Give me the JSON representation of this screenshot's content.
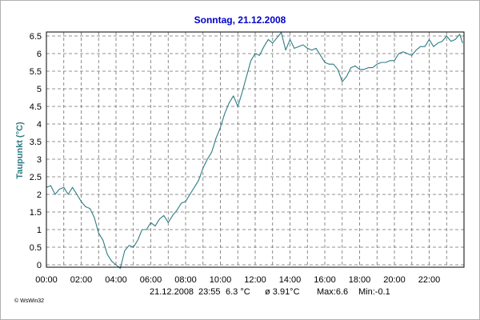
{
  "chart_data": {
    "type": "line",
    "title": "Sonntag, 21.12.2008",
    "ylabel": "Taupunkt (°C)",
    "xlabel": "",
    "xlim": [
      0,
      24
    ],
    "ylim": [
      0,
      6.5
    ],
    "x_ticks": [
      "00:00",
      "02:00",
      "04:00",
      "06:00",
      "08:00",
      "10:00",
      "12:00",
      "14:00",
      "16:00",
      "18:00",
      "20:00",
      "22:00"
    ],
    "y_ticks": [
      "0",
      "0.5",
      "1",
      "1.5",
      "2",
      "2.5",
      "3",
      "3.5",
      "4",
      "4.5",
      "5",
      "5.5",
      "6",
      "6.5"
    ],
    "grid": true,
    "series": [
      {
        "color": "#2e7c84",
        "x": [
          0.0,
          0.25,
          0.5,
          0.75,
          1.0,
          1.25,
          1.5,
          1.75,
          2.0,
          2.25,
          2.5,
          2.75,
          3.0,
          3.25,
          3.5,
          3.75,
          4.0,
          4.25,
          4.5,
          4.75,
          5.0,
          5.25,
          5.5,
          5.75,
          6.0,
          6.25,
          6.5,
          6.75,
          7.0,
          7.25,
          7.5,
          7.75,
          8.0,
          8.25,
          8.5,
          8.75,
          9.0,
          9.25,
          9.5,
          9.75,
          10.0,
          10.25,
          10.5,
          10.75,
          11.0,
          11.25,
          11.5,
          11.75,
          12.0,
          12.25,
          12.5,
          12.75,
          13.0,
          13.25,
          13.5,
          13.75,
          14.0,
          14.25,
          14.5,
          14.75,
          15.0,
          15.25,
          15.5,
          15.75,
          16.0,
          16.25,
          16.5,
          16.75,
          17.0,
          17.25,
          17.5,
          17.75,
          18.0,
          18.25,
          18.5,
          18.75,
          19.0,
          19.25,
          19.5,
          19.75,
          20.0,
          20.25,
          20.5,
          20.75,
          21.0,
          21.25,
          21.5,
          21.75,
          22.0,
          22.25,
          22.5,
          22.75,
          23.0,
          23.25,
          23.5,
          23.75,
          23.92
        ],
        "y": [
          2.2,
          2.25,
          2.0,
          2.15,
          2.2,
          2.0,
          2.2,
          2.0,
          1.8,
          1.65,
          1.6,
          1.35,
          0.9,
          0.7,
          0.3,
          0.1,
          0.0,
          -0.1,
          0.4,
          0.55,
          0.5,
          0.7,
          1.0,
          1.0,
          1.2,
          1.1,
          1.3,
          1.4,
          1.2,
          1.4,
          1.55,
          1.75,
          1.8,
          2.0,
          2.2,
          2.4,
          2.75,
          3.0,
          3.2,
          3.6,
          3.9,
          4.3,
          4.6,
          4.8,
          4.5,
          4.9,
          5.35,
          5.8,
          6.0,
          5.95,
          6.2,
          6.4,
          6.3,
          6.45,
          6.6,
          6.1,
          6.4,
          6.15,
          6.2,
          6.25,
          6.15,
          6.1,
          6.15,
          5.95,
          5.75,
          5.7,
          5.7,
          5.55,
          5.2,
          5.35,
          5.6,
          5.65,
          5.55,
          5.55,
          5.6,
          5.6,
          5.7,
          5.75,
          5.75,
          5.8,
          5.8,
          6.0,
          6.05,
          6.0,
          5.95,
          6.1,
          6.2,
          6.2,
          6.4,
          6.2,
          6.3,
          6.35,
          6.5,
          6.35,
          6.4,
          6.55,
          6.3
        ]
      }
    ]
  },
  "footer": {
    "date": "21.12.2008",
    "time": "23:55",
    "current": "6.3 °C",
    "average": "ø 3.91°C",
    "max": "Max:6.6",
    "min": "Min:-0.1"
  },
  "logo": "© WsWin32",
  "colors": {
    "title": "#0000cc",
    "ylabel": "#2e7c84",
    "line": "#2e7c84",
    "grid": "#707070"
  }
}
